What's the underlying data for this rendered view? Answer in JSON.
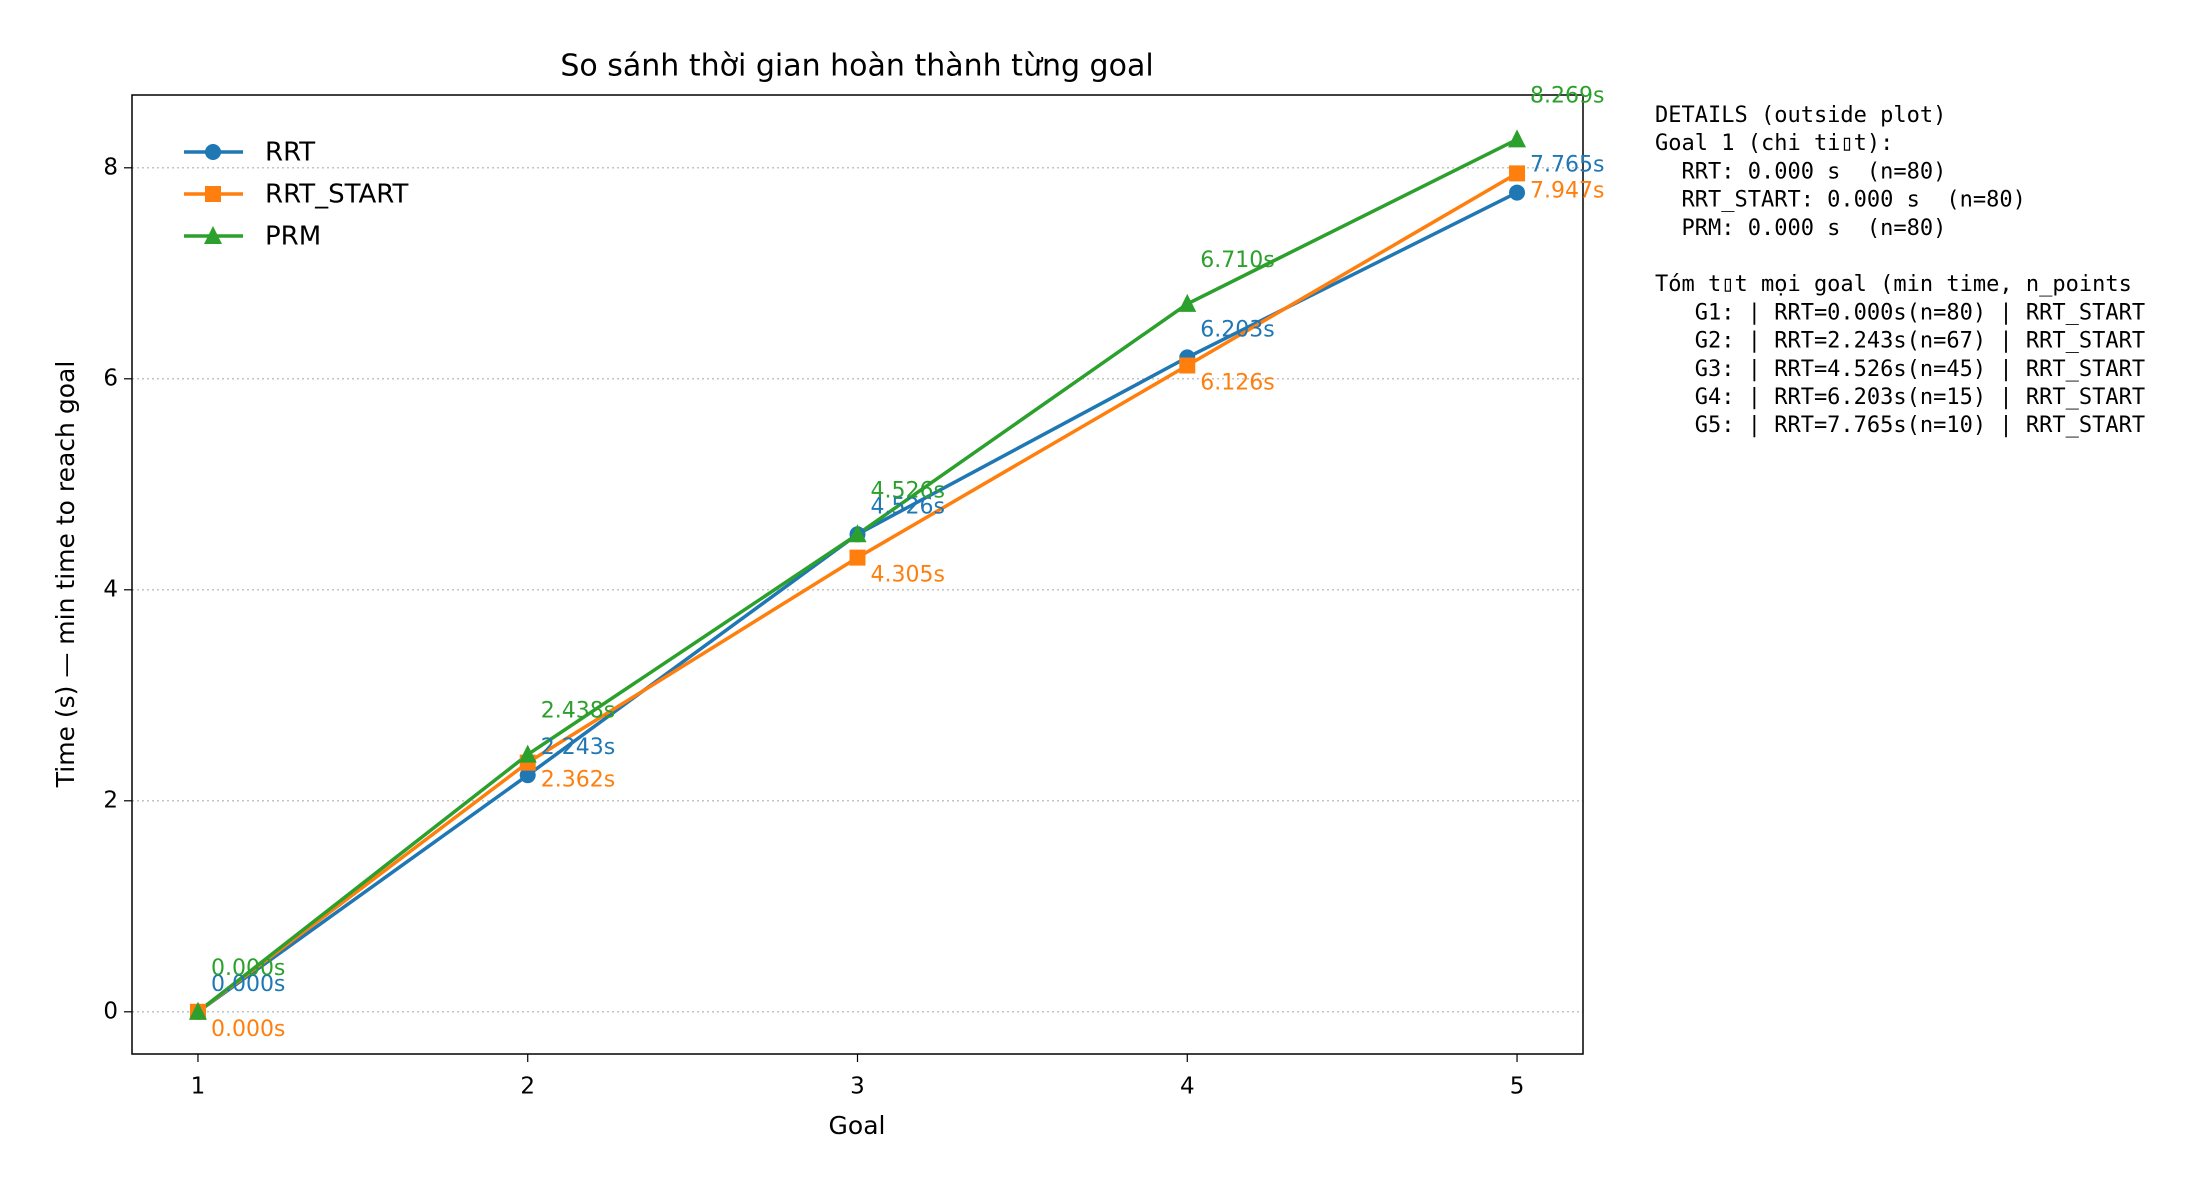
{
  "chart_data": {
    "type": "line",
    "title": "So sánh thời gian hoàn thành từng goal",
    "xlabel": "Goal",
    "ylabel": "Time (s) — min time to reach goal",
    "x": [
      1,
      2,
      3,
      4,
      5
    ],
    "xlim": [
      0.8,
      5.2
    ],
    "xticks": [
      1,
      2,
      3,
      4,
      5
    ],
    "ylim": [
      -0.4,
      8.69
    ],
    "yticks": [
      0,
      2,
      4,
      6,
      8
    ],
    "grid": "y",
    "legend": "upper left",
    "series": [
      {
        "name": "RRT",
        "color": "#1f77b4",
        "marker": "circle",
        "values": [
          0,
          2.243,
          4.526,
          6.203,
          7.765
        ],
        "value_labels": [
          "0.000s",
          "2.243s",
          "4.526s",
          "6.203s",
          "7.765s"
        ]
      },
      {
        "name": "RRT_START",
        "color": "#ff7f0e",
        "marker": "square",
        "values": [
          0,
          2.362,
          4.305,
          6.126,
          7.947
        ],
        "value_labels": [
          "0.000s",
          "2.362s",
          "4.305s",
          "6.126s",
          "7.947s"
        ]
      },
      {
        "name": "PRM",
        "color": "#2ca02c",
        "marker": "triangle",
        "values": [
          0,
          2.438,
          4.526,
          6.71,
          8.269
        ],
        "value_labels": [
          "0.000s",
          "2.438s",
          "4.526s",
          "6.710s",
          "8.269s"
        ]
      }
    ],
    "details": [
      "DETAILS (outside plot)",
      "Goal 1 (chi ti▯t):",
      "  RRT: 0.000 s  (n=80)",
      "  RRT_START: 0.000 s  (n=80)",
      "  PRM: 0.000 s  (n=80)",
      "",
      "Tóm t▯t mọi goal (min time, n_points",
      "   G1: | RRT=0.000s(n=80) | RRT_START",
      "   G2: | RRT=2.243s(n=67) | RRT_START",
      "   G3: | RRT=4.526s(n=45) | RRT_START",
      "   G4: | RRT=6.203s(n=15) | RRT_START",
      "   G5: | RRT=7.765s(n=10) | RRT_START"
    ]
  }
}
